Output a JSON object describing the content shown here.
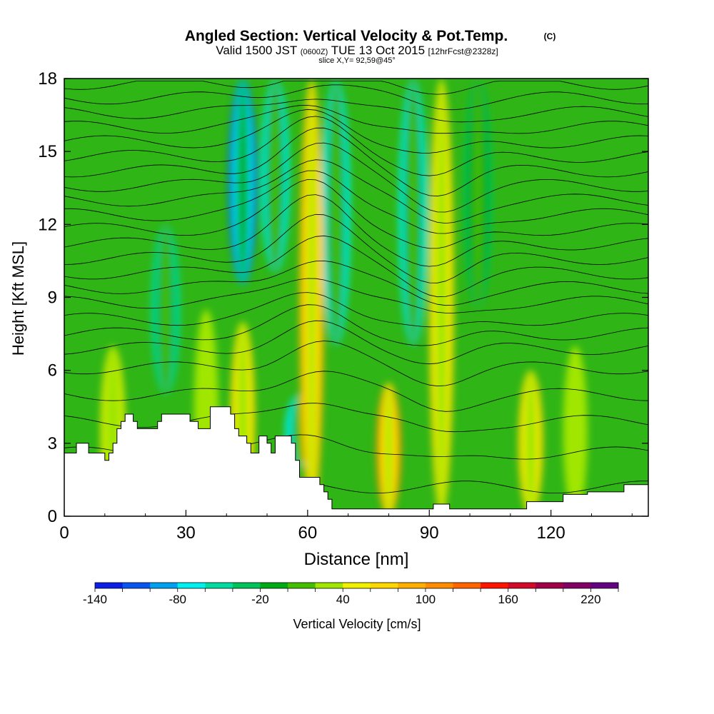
{
  "header": {
    "title": "Angled Section: Vertical Velocity & Pot.Temp.",
    "copyright": "(C)",
    "valid_prefix": "Valid 1500 JST",
    "valid_zulu": "(0600Z)",
    "valid_date": "TUE 13 Oct 2015",
    "forecast": "[12hrFcst@2328z]",
    "slice": "slice X,Y= 92,59@45°"
  },
  "chart_data": {
    "type": "heatmap",
    "xlabel": "Distance [nm]",
    "ylabel": "Height [Kft MSL]",
    "xlim": [
      0,
      144
    ],
    "ylim": [
      0,
      18
    ],
    "xticks": [
      "0",
      "30",
      "60",
      "90",
      "120"
    ],
    "xtick_values": [
      0,
      30,
      60,
      90,
      120
    ],
    "yticks": [
      "0",
      "3",
      "6",
      "9",
      "12",
      "15",
      "18"
    ],
    "ytick_values": [
      0,
      3,
      6,
      9,
      12,
      15,
      18
    ],
    "colorbar": {
      "label": "Vertical Velocity [cm/s]",
      "levels": [
        -140,
        -120,
        -100,
        -80,
        -60,
        -40,
        -20,
        0,
        20,
        40,
        60,
        80,
        100,
        120,
        140,
        160,
        180,
        200,
        220,
        240
      ],
      "tick_labels": [
        "-140",
        "-80",
        "-20",
        "40",
        "100",
        "160",
        "220"
      ],
      "tick_values": [
        -140,
        -80,
        -20,
        40,
        100,
        160,
        220
      ],
      "colors": [
        "#0a1ee6",
        "#0a55f0",
        "#00a0f0",
        "#00f0f0",
        "#00dca0",
        "#00c35a",
        "#00aa14",
        "#46be00",
        "#a0e600",
        "#f0f000",
        "#ffd700",
        "#ffaf00",
        "#ff8c00",
        "#ff6400",
        "#ff1400",
        "#d20a28",
        "#a00046",
        "#820064",
        "#640082"
      ]
    },
    "updrafts": [
      {
        "x": 12,
        "top": 7,
        "value": 45
      },
      {
        "x": 35,
        "top": 8.5,
        "value": 25
      },
      {
        "x": 44,
        "top": 8,
        "value": 60
      },
      {
        "x": 61,
        "top": 18,
        "value": 95
      },
      {
        "x": 80,
        "top": 5.5,
        "value": 110
      },
      {
        "x": 93,
        "top": 18,
        "value": 75
      },
      {
        "x": 115,
        "top": 6,
        "value": 70
      },
      {
        "x": 126,
        "top": 7,
        "value": 35
      }
    ],
    "downdrafts": [
      {
        "x": 44,
        "top": 18,
        "bottom": 9.5,
        "value": -120
      },
      {
        "x": 52,
        "top": 18,
        "bottom": 10,
        "value": -70
      },
      {
        "x": 58,
        "top": 5,
        "bottom": 2,
        "value": -75
      },
      {
        "x": 67,
        "top": 18,
        "bottom": 7,
        "value": -65
      },
      {
        "x": 86,
        "top": 18,
        "bottom": 7,
        "value": -70
      },
      {
        "x": 102,
        "top": 18,
        "bottom": 8.5,
        "value": -40
      },
      {
        "x": 25,
        "top": 12,
        "bottom": 5,
        "value": -45
      }
    ],
    "terrain": [
      [
        0,
        2.6
      ],
      [
        3,
        2.6
      ],
      [
        3,
        3.0
      ],
      [
        6,
        3.0
      ],
      [
        6,
        2.6
      ],
      [
        10,
        2.6
      ],
      [
        10,
        2.3
      ],
      [
        11,
        2.3
      ],
      [
        11,
        2.6
      ],
      [
        12,
        2.6
      ],
      [
        12,
        3.0
      ],
      [
        13,
        3.0
      ],
      [
        13,
        3.6
      ],
      [
        14,
        3.6
      ],
      [
        14,
        3.9
      ],
      [
        15,
        3.9
      ],
      [
        15,
        4.2
      ],
      [
        17,
        4.2
      ],
      [
        17,
        3.9
      ],
      [
        18,
        3.9
      ],
      [
        18,
        3.6
      ],
      [
        23,
        3.6
      ],
      [
        23,
        3.9
      ],
      [
        24,
        3.9
      ],
      [
        24,
        4.2
      ],
      [
        31,
        4.2
      ],
      [
        31,
        3.9
      ],
      [
        33,
        3.9
      ],
      [
        33,
        3.6
      ],
      [
        36,
        3.6
      ],
      [
        36,
        4.5
      ],
      [
        41,
        4.5
      ],
      [
        41,
        4.2
      ],
      [
        42,
        4.2
      ],
      [
        42,
        3.6
      ],
      [
        43,
        3.6
      ],
      [
        43,
        3.3
      ],
      [
        45,
        3.3
      ],
      [
        45,
        3.0
      ],
      [
        46,
        3.0
      ],
      [
        46,
        2.6
      ],
      [
        48,
        2.6
      ],
      [
        48,
        3.3
      ],
      [
        50,
        3.3
      ],
      [
        50,
        3.0
      ],
      [
        51,
        3.0
      ],
      [
        51,
        2.6
      ],
      [
        52,
        2.6
      ],
      [
        52,
        3.3
      ],
      [
        56,
        3.3
      ],
      [
        56,
        3.0
      ],
      [
        57,
        3.0
      ],
      [
        57,
        2.3
      ],
      [
        58,
        2.3
      ],
      [
        58,
        1.6
      ],
      [
        63,
        1.6
      ],
      [
        63,
        1.3
      ],
      [
        64,
        1.3
      ],
      [
        64,
        1.0
      ],
      [
        65,
        1.0
      ],
      [
        65,
        0.7
      ],
      [
        66,
        0.7
      ],
      [
        66,
        0.3
      ],
      [
        91,
        0.3
      ],
      [
        91,
        0.5
      ],
      [
        95,
        0.5
      ],
      [
        95,
        0.3
      ],
      [
        114,
        0.3
      ],
      [
        114,
        0.6
      ],
      [
        123,
        0.6
      ],
      [
        123,
        0.9
      ],
      [
        129,
        0.9
      ],
      [
        129,
        1.0
      ],
      [
        138,
        1.0
      ],
      [
        138,
        1.3
      ],
      [
        144,
        1.3
      ]
    ],
    "isentropes": [
      {
        "base": 1.2,
        "dip": 0.0
      },
      {
        "base": 2.6,
        "dip": 0.8
      },
      {
        "base": 3.9,
        "dip": 1.0
      },
      {
        "base": 5.0,
        "dip": 1.1
      },
      {
        "base": 6.1,
        "dip": 1.0
      },
      {
        "base": 6.9,
        "dip": 0.9
      },
      {
        "base": 7.5,
        "dip": 1.0
      },
      {
        "base": 8.1,
        "dip": 1.1
      },
      {
        "base": 8.8,
        "dip": 1.2
      },
      {
        "base": 9.4,
        "dip": 1.3
      },
      {
        "base": 10.0,
        "dip": 1.5
      },
      {
        "base": 10.6,
        "dip": 1.6
      },
      {
        "base": 11.2,
        "dip": 1.8
      },
      {
        "base": 11.8,
        "dip": 2.0
      },
      {
        "base": 12.4,
        "dip": 2.0
      },
      {
        "base": 13.0,
        "dip": 1.9
      },
      {
        "base": 13.6,
        "dip": 1.8
      },
      {
        "base": 14.2,
        "dip": 1.6
      },
      {
        "base": 14.8,
        "dip": 1.4
      },
      {
        "base": 15.4,
        "dip": 1.2
      },
      {
        "base": 16.0,
        "dip": 1.0
      },
      {
        "base": 16.6,
        "dip": 0.8
      },
      {
        "base": 17.2,
        "dip": 0.6
      },
      {
        "base": 17.8,
        "dip": 0.4
      }
    ]
  }
}
